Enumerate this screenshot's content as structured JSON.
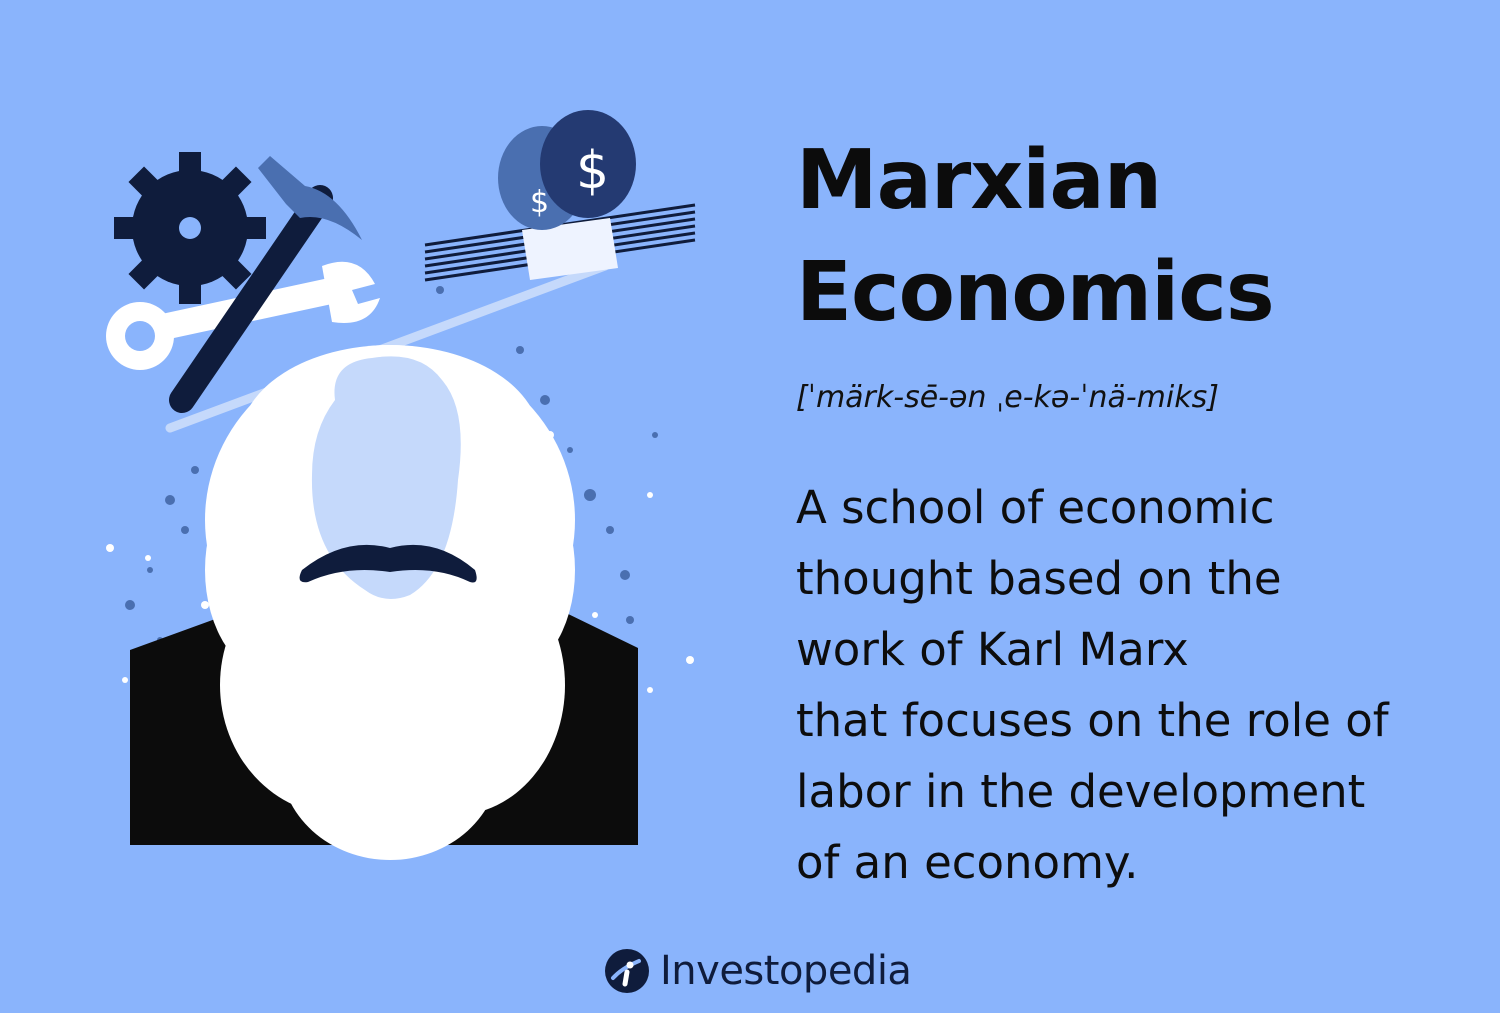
{
  "heading": {
    "line1": "Marxian",
    "line2": "Economics"
  },
  "pronunciation": "[ˈmärk-sē-ən ˌe-kə-ˈnä-miks]",
  "definition": {
    "lines": [
      "A school of economic",
      "thought based on the",
      "work of Karl Marx",
      "that focuses on the role of",
      "labor in the development",
      "of an economy."
    ]
  },
  "illustration": {
    "icons": [
      "gear-icon",
      "hammer-icon",
      "wrench-icon",
      "coin-stack-icon",
      "banknote-stack-icon",
      "beard-portrait"
    ],
    "colors": {
      "navy": "#0f1c3c",
      "mid_blue": "#4a6fb0",
      "light_face": "#c5d9fb",
      "beard": "#ffffff",
      "background": "#8ab4fc"
    }
  },
  "brand": {
    "name": "Investopedia",
    "icon": "investopedia-logo-icon"
  }
}
